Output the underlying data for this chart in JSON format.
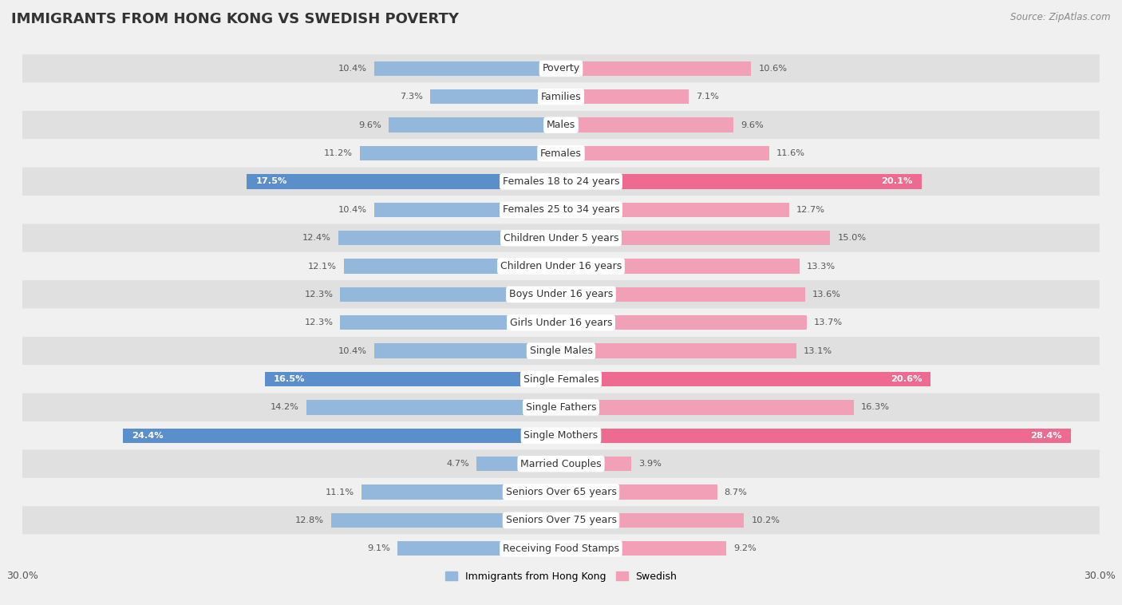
{
  "title": "IMMIGRANTS FROM HONG KONG VS SWEDISH POVERTY",
  "source": "Source: ZipAtlas.com",
  "categories": [
    "Poverty",
    "Families",
    "Males",
    "Females",
    "Females 18 to 24 years",
    "Females 25 to 34 years",
    "Children Under 5 years",
    "Children Under 16 years",
    "Boys Under 16 years",
    "Girls Under 16 years",
    "Single Males",
    "Single Females",
    "Single Fathers",
    "Single Mothers",
    "Married Couples",
    "Seniors Over 65 years",
    "Seniors Over 75 years",
    "Receiving Food Stamps"
  ],
  "hk_values": [
    10.4,
    7.3,
    9.6,
    11.2,
    17.5,
    10.4,
    12.4,
    12.1,
    12.3,
    12.3,
    10.4,
    16.5,
    14.2,
    24.4,
    4.7,
    11.1,
    12.8,
    9.1
  ],
  "sw_values": [
    10.6,
    7.1,
    9.6,
    11.6,
    20.1,
    12.7,
    15.0,
    13.3,
    13.6,
    13.7,
    13.1,
    20.6,
    16.3,
    28.4,
    3.9,
    8.7,
    10.2,
    9.2
  ],
  "hk_color": "#93B8DC",
  "sw_color": "#F2A0B8",
  "hk_color_highlight": "#5B8FCC",
  "sw_color_highlight": "#EE6A90",
  "background_color": "#f0f0f0",
  "row_color_even": "#e0e0e0",
  "row_color_odd": "#f0f0f0",
  "bar_height": 0.52,
  "xlim": 30.0,
  "legend_label_hk": "Immigrants from Hong Kong",
  "legend_label_sw": "Swedish",
  "title_fontsize": 13,
  "label_fontsize": 9,
  "value_fontsize": 8.2
}
